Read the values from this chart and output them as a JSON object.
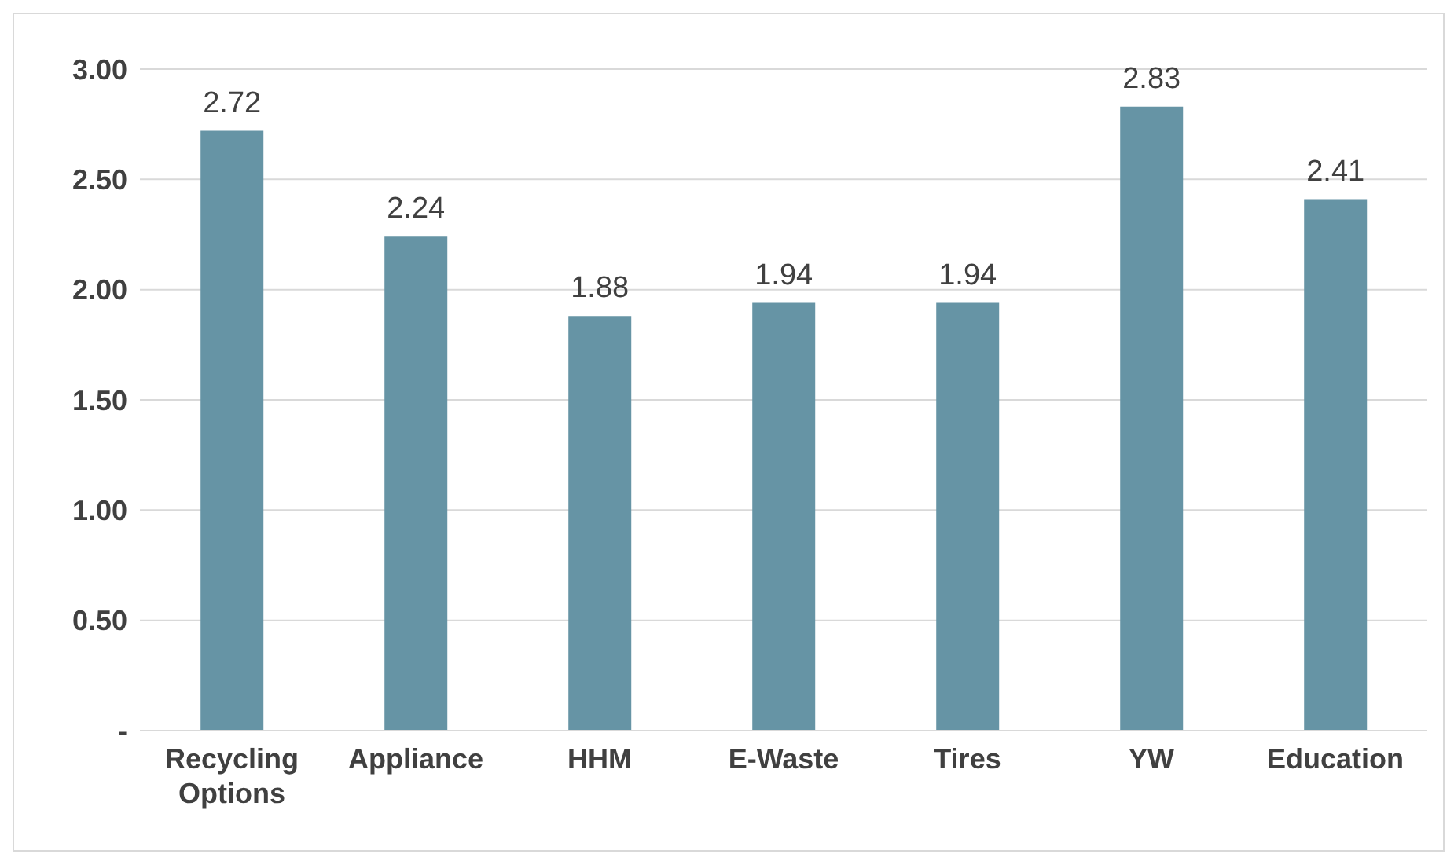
{
  "chart_data": {
    "type": "bar",
    "categories": [
      "Recycling Options",
      "Appliance",
      "HHM",
      "E-Waste",
      "Tires",
      "YW",
      "Education"
    ],
    "values": [
      2.72,
      2.24,
      1.88,
      1.94,
      1.94,
      2.83,
      2.41
    ],
    "color": "#6694a5",
    "ylim": [
      0,
      3
    ],
    "yticks": [
      {
        "value": 0,
        "label": "-"
      },
      {
        "value": 0.5,
        "label": "0.50"
      },
      {
        "value": 1,
        "label": "1.00"
      },
      {
        "value": 1.5,
        "label": "1.50"
      },
      {
        "value": 2,
        "label": "2.00"
      },
      {
        "value": 2.5,
        "label": "2.50"
      },
      {
        "value": 3,
        "label": "3.00"
      }
    ],
    "grid": "y",
    "data_labels": true
  }
}
